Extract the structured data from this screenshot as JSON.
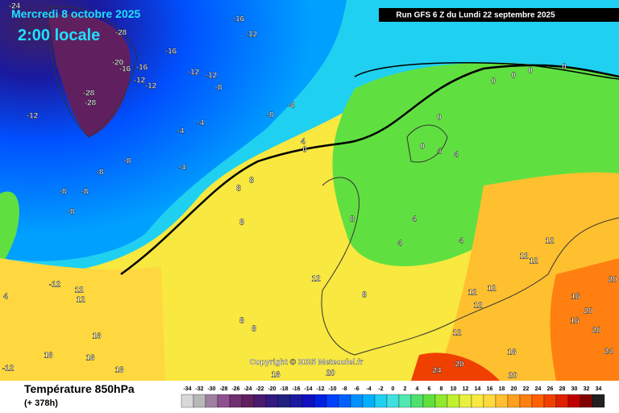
{
  "header": {
    "date": "Mercredi 8 octobre 2025",
    "time": "2:00 locale",
    "run": "Run GFS 6 Z du Lundi 22 septembre 2025"
  },
  "footer": {
    "title": "Température 850hPa",
    "lead": "(+ 378h)",
    "copyright": "Copyright © 2025 Meteociel.fr"
  },
  "scale": {
    "values": [
      -34,
      -32,
      -30,
      -28,
      -26,
      -24,
      -22,
      -20,
      -18,
      -16,
      -14,
      -12,
      -10,
      -8,
      -6,
      -4,
      -2,
      0,
      2,
      4,
      6,
      8,
      10,
      12,
      14,
      16,
      18,
      20,
      22,
      24,
      26,
      28,
      30,
      32,
      34
    ],
    "colors": [
      "#d8d8d8",
      "#b8b8b8",
      "#a080a0",
      "#905090",
      "#703070",
      "#602060",
      "#4a1a70",
      "#301a80",
      "#202080",
      "#1a1aa0",
      "#1010c0",
      "#0020e0",
      "#0040ff",
      "#0060ff",
      "#0090ff",
      "#00b0ff",
      "#20d0f0",
      "#40e0e0",
      "#50e8b0",
      "#50e070",
      "#60e040",
      "#90e830",
      "#c0f030",
      "#e8f040",
      "#f8e840",
      "#ffd840",
      "#ffc030",
      "#ffa020",
      "#ff8010",
      "#ff6000",
      "#f04000",
      "#e02000",
      "#c00000",
      "#800000",
      "#202020"
    ]
  },
  "map": {
    "labels": [
      "-24",
      "-16",
      "-12",
      "-28",
      "-16",
      "-20",
      "-16",
      "-16",
      "-12",
      "-12",
      "-12",
      "-12",
      "-8",
      "-28",
      "-28",
      "-12",
      "-4",
      "-8",
      "-4",
      "-4",
      "-8",
      "-8",
      "-4",
      "-8",
      "-8",
      "-8",
      "4",
      "0",
      "0",
      "0",
      "0",
      "0",
      "0",
      "0",
      "4",
      "4",
      "8",
      "8",
      "8",
      "4",
      "4",
      "4",
      "8",
      "12",
      "12",
      "12",
      "12",
      "8",
      "12",
      "12",
      "12",
      "12",
      "16",
      "20",
      "16",
      "20",
      "16",
      "20",
      "24",
      "20",
      "16",
      "12",
      "12",
      "-12",
      "4",
      "16",
      "16",
      "16",
      "16",
      "-12",
      "8",
      "8",
      "20",
      "20",
      "24"
    ]
  }
}
